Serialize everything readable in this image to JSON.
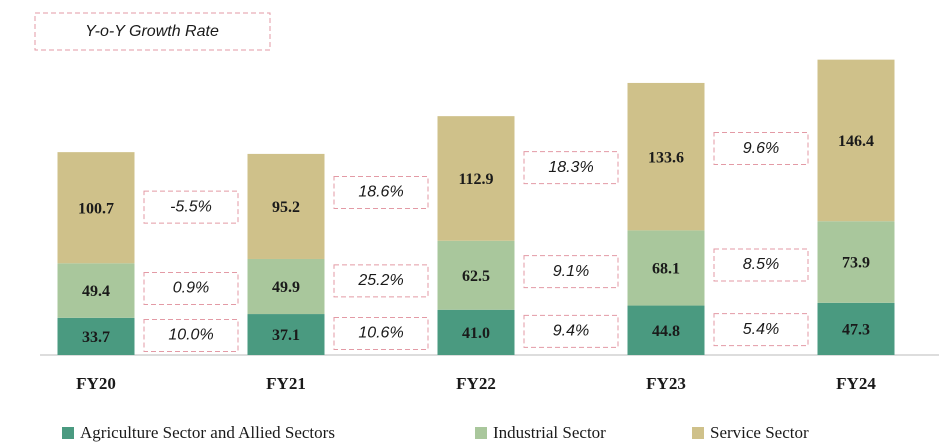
{
  "chart_data": {
    "type": "stacked_bar",
    "growth_title": "Y-o-Y Growth Rate",
    "categories": [
      "FY20",
      "FY21",
      "FY22",
      "FY23",
      "FY24"
    ],
    "ylim": [
      0,
      270
    ],
    "series": [
      {
        "name": "Agriculture Sector and Allied Sectors",
        "color": "#4a9a80",
        "values": [
          33.7,
          37.1,
          41.0,
          44.8,
          47.3
        ],
        "value_labels": [
          "33.7",
          "37.1",
          "41.0",
          "44.8",
          "47.3"
        ],
        "growth": [
          10.0,
          10.6,
          9.4,
          5.4
        ],
        "growth_labels": [
          "10.0%",
          "10.6%",
          "9.4%",
          "5.4%"
        ]
      },
      {
        "name": "Industrial Sector",
        "color": "#a9c79c",
        "values": [
          49.4,
          49.9,
          62.5,
          68.1,
          73.9
        ],
        "value_labels": [
          "49.4",
          "49.9",
          "62.5",
          "68.1",
          "73.9"
        ],
        "growth": [
          0.9,
          25.2,
          9.1,
          8.5
        ],
        "growth_labels": [
          "0.9%",
          "25.2%",
          "9.1%",
          "8.5%"
        ]
      },
      {
        "name": "Service Sector",
        "color": "#cfc18a",
        "values": [
          100.7,
          95.2,
          112.9,
          133.6,
          146.4
        ],
        "value_labels": [
          "100.7",
          "95.2",
          "112.9",
          "133.6",
          "146.4"
        ],
        "growth": [
          -5.5,
          18.6,
          18.3,
          9.6
        ],
        "growth_labels": [
          "-5.5%",
          "18.6%",
          "18.3%",
          "9.6%"
        ]
      }
    ]
  }
}
